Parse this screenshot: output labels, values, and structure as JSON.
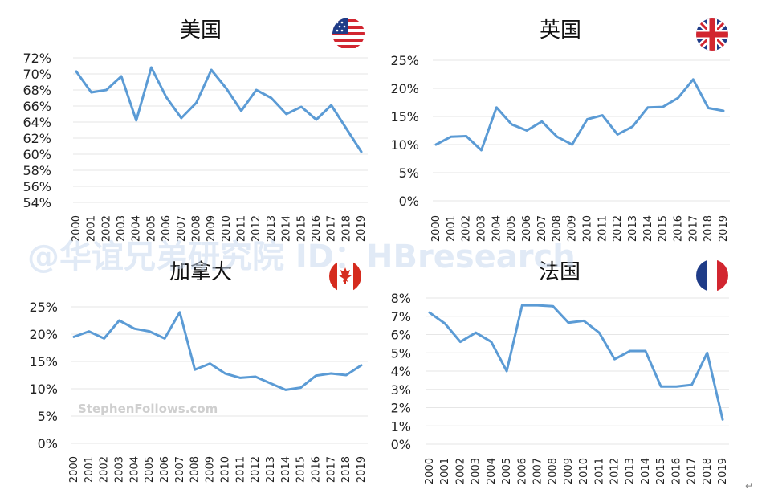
{
  "chart_data": [
    {
      "type": "line",
      "title": "美国",
      "flag": "us-flag",
      "ytick_labels": [
        "72%",
        "70%",
        "68%",
        "66%",
        "64%",
        "62%",
        "60%",
        "58%",
        "56%",
        "54%"
      ],
      "ylim": [
        54,
        72
      ],
      "x": [
        "2000",
        "2001",
        "2002",
        "2003",
        "2004",
        "2005",
        "2006",
        "2007",
        "2008",
        "2009",
        "2010",
        "2011",
        "2012",
        "2013",
        "2014",
        "2015",
        "2016",
        "2017",
        "2018",
        "2019"
      ],
      "series": [
        {
          "values": [
            70.3,
            67.7,
            68.0,
            69.7,
            64.2,
            70.8,
            67.1,
            64.5,
            66.4,
            70.5,
            68.2,
            65.4,
            68.0,
            67.0,
            65.0,
            65.9,
            64.3,
            66.1,
            63.2,
            60.3
          ]
        }
      ],
      "color": "#5b9bd5",
      "grid": true
    },
    {
      "type": "line",
      "title": "英国",
      "flag": "uk-flag",
      "ytick_labels": [
        "25%",
        "20%",
        "15%",
        "10%",
        "5%",
        "0%"
      ],
      "ylim": [
        0,
        25
      ],
      "x": [
        "2000",
        "2001",
        "2002",
        "2003",
        "2004",
        "2005",
        "2006",
        "2007",
        "2008",
        "2009",
        "2010",
        "2011",
        "2012",
        "2013",
        "2014",
        "2015",
        "2016",
        "2017",
        "2018",
        "2019"
      ],
      "series": [
        {
          "values": [
            10.0,
            11.4,
            11.5,
            9.0,
            16.6,
            13.6,
            12.5,
            14.1,
            11.4,
            10.0,
            14.5,
            15.2,
            11.8,
            13.2,
            16.6,
            16.7,
            18.3,
            21.6,
            16.5,
            16.0
          ]
        }
      ],
      "color": "#5b9bd5",
      "grid": true
    },
    {
      "type": "line",
      "title": "加拿大",
      "flag": "canada-flag",
      "ytick_labels": [
        "25%",
        "20%",
        "15%",
        "10%",
        "5%",
        "0%"
      ],
      "ylim": [
        0,
        25
      ],
      "x": [
        "2000",
        "2001",
        "2002",
        "2003",
        "2004",
        "2005",
        "2006",
        "2007",
        "2008",
        "2009",
        "2010",
        "2011",
        "2012",
        "2013",
        "2014",
        "2015",
        "2016",
        "2017",
        "2018",
        "2019"
      ],
      "series": [
        {
          "values": [
            19.5,
            20.5,
            19.2,
            22.5,
            21.0,
            20.5,
            19.2,
            24.0,
            13.5,
            14.6,
            12.8,
            12.0,
            12.2,
            11.0,
            9.8,
            10.2,
            12.4,
            12.8,
            12.5,
            14.3
          ]
        }
      ],
      "color": "#5b9bd5",
      "grid": true,
      "annotation": "StephenFollows.com"
    },
    {
      "type": "line",
      "title": "法国",
      "flag": "france-flag",
      "ytick_labels": [
        "8%",
        "7%",
        "6%",
        "5%",
        "4%",
        "3%",
        "2%",
        "1%",
        "0%"
      ],
      "ylim": [
        0,
        8
      ],
      "x": [
        "2000",
        "2001",
        "2002",
        "2003",
        "2004",
        "2005",
        "2006",
        "2007",
        "2008",
        "2009",
        "2010",
        "2011",
        "2012",
        "2013",
        "2014",
        "2015",
        "2016",
        "2017",
        "2018",
        "2019"
      ],
      "series": [
        {
          "values": [
            7.2,
            6.6,
            5.6,
            6.1,
            5.6,
            4.0,
            7.6,
            7.6,
            7.55,
            6.65,
            6.75,
            6.1,
            4.65,
            5.1,
            5.1,
            3.15,
            3.15,
            3.25,
            5.0,
            1.35
          ]
        }
      ],
      "color": "#5b9bd5",
      "grid": true
    }
  ],
  "watermark": "@华谊兄弟研究院 ID：HBresearch",
  "corner_mark": "↵"
}
